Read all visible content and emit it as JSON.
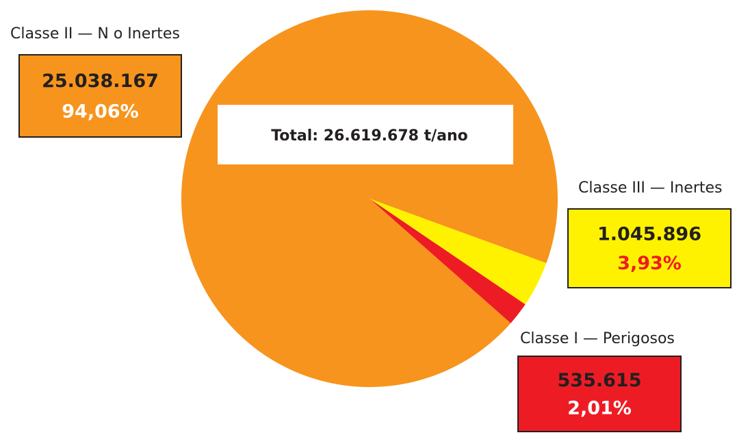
{
  "chart_data": {
    "type": "pie",
    "annotation": "Total: 26.619.678 t/ano",
    "categories": [
      "Classe II — N o Inertes",
      "Classe III — Inertes",
      "Classe I — Perigosos"
    ],
    "values": [
      25038167,
      1045896,
      535615
    ],
    "value_labels": [
      "25.038.167",
      "1.045.896",
      "535.615"
    ],
    "percent_labels": [
      "94,06%",
      "3,93%",
      "2,01%"
    ],
    "colors": [
      "#f7941d",
      "#fff200",
      "#ed1c24"
    ]
  }
}
